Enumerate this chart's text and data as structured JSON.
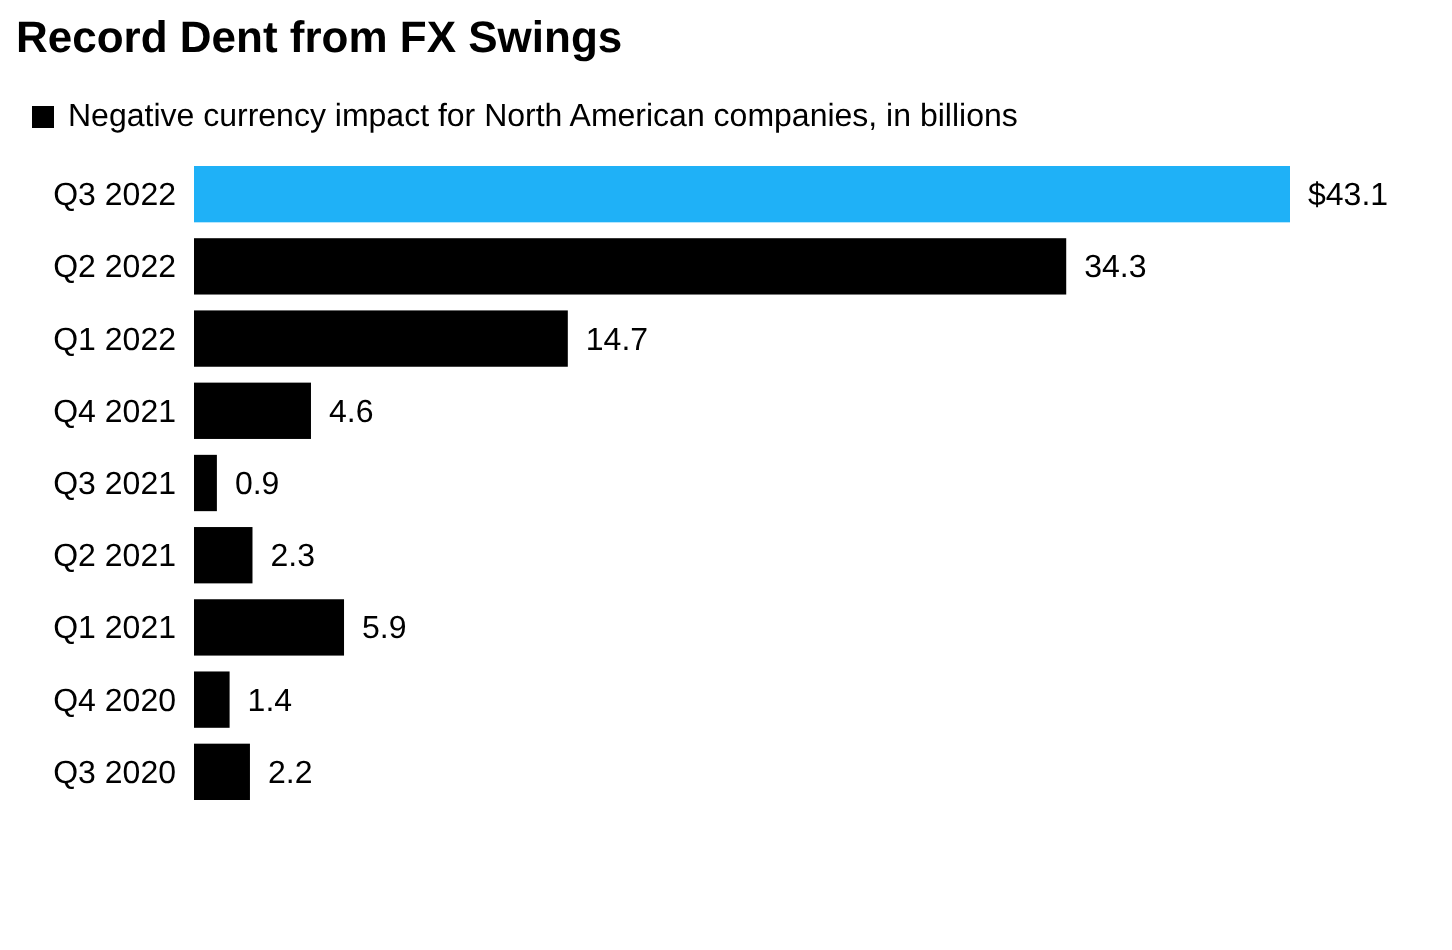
{
  "chart_data": {
    "type": "bar",
    "orientation": "horizontal",
    "title": "Record Dent from FX Swings",
    "legend": "top left",
    "relative": false,
    "categories": [
      "Q3 2022",
      "Q2 2022",
      "Q1 2022",
      "Q4 2021",
      "Q3 2021",
      "Q2 2021",
      "Q1 2021",
      "Q4 2020",
      "Q3 2020"
    ],
    "series": [
      {
        "name": "Negative currency impact for North American companies, in billions",
        "color": "#000000",
        "colors": [
          "#1fb1f7",
          "#000000",
          "#000000",
          "#000000",
          "#000000",
          "#000000",
          "#000000",
          "#000000",
          "#000000"
        ],
        "values": [
          43.1,
          34.3,
          14.7,
          4.6,
          0.9,
          2.3,
          5.9,
          1.4,
          2.2
        ],
        "value_labels": [
          "$43.1",
          "34.3",
          "14.7",
          "4.6",
          "0.9",
          "2.3",
          "5.9",
          "1.4",
          "2.2"
        ]
      }
    ]
  }
}
